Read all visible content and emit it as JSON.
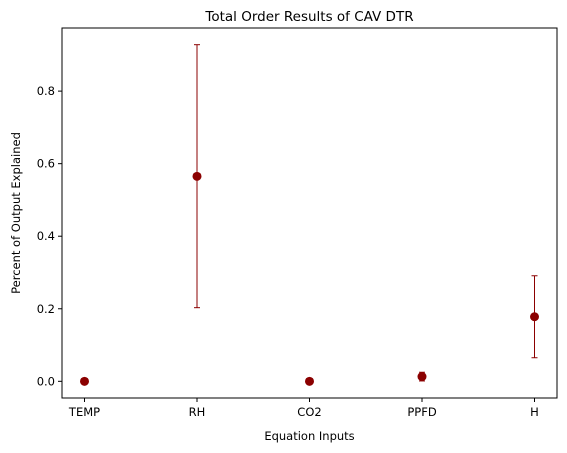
{
  "chart_data": {
    "type": "scatter",
    "title": "Total Order Results of CAV DTR",
    "xlabel": "Equation Inputs",
    "ylabel": "Percent of Output Explained",
    "categories": [
      "TEMP",
      "RH",
      "CO2",
      "PPFD",
      "H"
    ],
    "series": [
      {
        "values": [
          0.0,
          0.565,
          0.0,
          0.013,
          0.178
        ],
        "error_low": [
          0.0,
          0.203,
          0.0,
          0.001,
          0.065
        ],
        "error_high": [
          0.0,
          0.928,
          0.0,
          0.025,
          0.291
        ],
        "marker_color": "#8b0000",
        "errorbar_color": "#8b0000"
      }
    ],
    "yticks": [
      0.0,
      0.2,
      0.4,
      0.6,
      0.8
    ],
    "ytick_labels": [
      "0.0",
      "0.2",
      "0.4",
      "0.6",
      "0.8"
    ],
    "ylim": [
      -0.046,
      0.974
    ],
    "grid": false,
    "legend": false
  }
}
